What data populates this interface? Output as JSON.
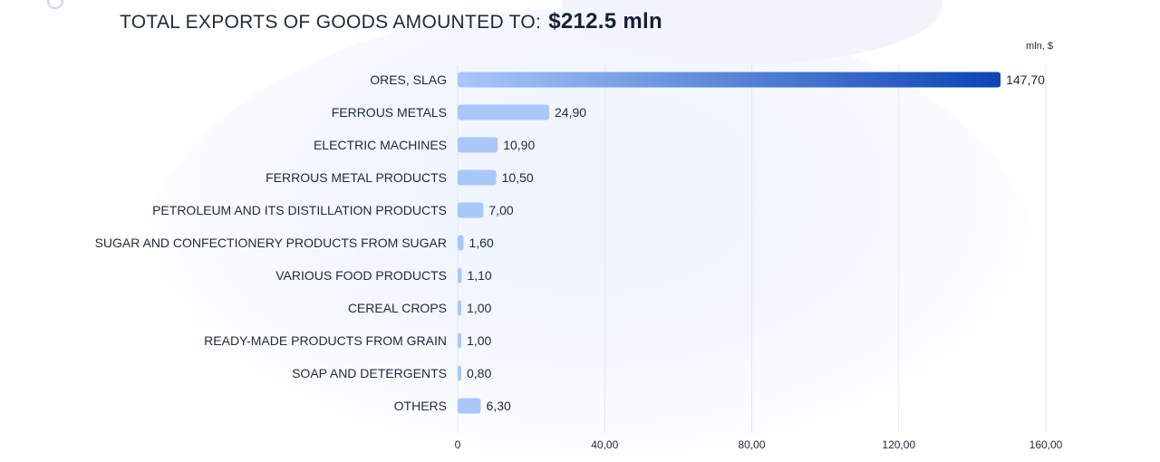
{
  "title": {
    "text": "TOTAL EXPORTS OF GOODS AMOUNTED TO:",
    "amount": "$212.5 mln"
  },
  "unit_label": "mln, $",
  "colors": {
    "bar_light": "#a9c8fa",
    "bar_dark": "#0b44b5",
    "grid": "#e3e8f0",
    "text": "#1f2a3a"
  },
  "chart_data": {
    "type": "bar",
    "orientation": "horizontal",
    "title": "TOTAL EXPORTS OF GOODS AMOUNTED TO: $212.5 mln",
    "unit": "mln, $",
    "categories": [
      "ORES, SLAG",
      "FERROUS METALS",
      "ELECTRIC MACHINES",
      "FERROUS METAL PRODUCTS",
      "PETROLEUM AND ITS DISTILLATION PRODUCTS",
      "SUGAR AND CONFECTIONERY PRODUCTS FROM SUGAR",
      "VARIOUS FOOD PRODUCTS",
      "CEREAL CROPS",
      "READY-MADE PRODUCTS FROM GRAIN",
      "SOAP AND DETERGENTS",
      "OTHERS"
    ],
    "values": [
      147.7,
      24.9,
      10.9,
      10.5,
      7.0,
      1.6,
      1.1,
      1.0,
      1.0,
      0.8,
      6.3
    ],
    "value_labels": [
      "147,70",
      "24,90",
      "10,90",
      "10,50",
      "7,00",
      "1,60",
      "1,10",
      "1,00",
      "1,00",
      "0,80",
      "6,30"
    ],
    "xlim": [
      0,
      160
    ],
    "xticks": [
      0,
      40,
      80,
      120,
      160
    ],
    "xtick_labels": [
      "0",
      "40,00",
      "80,00",
      "120,00",
      "160,00"
    ],
    "grid": true,
    "legend": "none"
  }
}
